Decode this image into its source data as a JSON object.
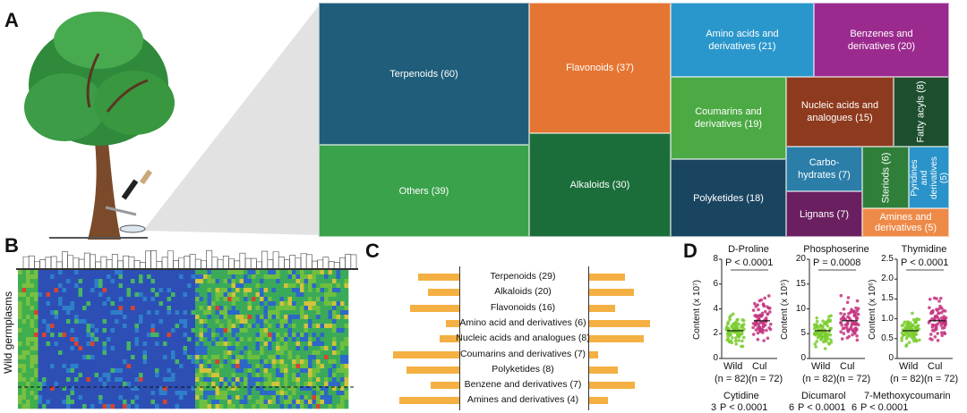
{
  "panels": {
    "a": "A",
    "b": "B",
    "c": "C",
    "d": "D"
  },
  "treemap": {
    "cells": [
      {
        "id": "terpenoids",
        "label": "Terpenoids (60)",
        "color": "#1f5d7a"
      },
      {
        "id": "others",
        "label": "Others (39)",
        "color": "#3aa24a"
      },
      {
        "id": "flavonoids",
        "label": "Flavonoids (37)",
        "color": "#e57532"
      },
      {
        "id": "alkaloids",
        "label": "Alkaloids (30)",
        "color": "#1b6e3a"
      },
      {
        "id": "amino-acids",
        "label": "Amino acids and derivatives (21)",
        "color": "#2a97cc"
      },
      {
        "id": "benzenes",
        "label": "Benzenes and derivatives (20)",
        "color": "#9b2a8e"
      },
      {
        "id": "coumarins",
        "label": "Coumarins and derivatives (19)",
        "color": "#4caa45"
      },
      {
        "id": "polyketides",
        "label": "Polyketides (18)",
        "color": "#1a4560"
      },
      {
        "id": "nucleic-acids",
        "label": "Nucleic acids and analogues (15)",
        "color": "#8e3a1e"
      },
      {
        "id": "fatty-acyls",
        "label": "Fatty acyls (8)",
        "color": "#1d4f2e"
      },
      {
        "id": "carbohydrates",
        "label": "Carbo-hydrates (7)",
        "color": "#2a7ea8"
      },
      {
        "id": "steriods",
        "label": "Steriods (6)",
        "color": "#2f7f3a"
      },
      {
        "id": "pyridines",
        "label": "Pyridines and derivatives (5)",
        "color": "#2a93c9"
      },
      {
        "id": "lignans",
        "label": "Lignans (7)",
        "color": "#6a2060"
      },
      {
        "id": "amines",
        "label": "Amines and derivatives (5)",
        "color": "#ee8a48"
      }
    ]
  },
  "heatmap": {
    "ylabel": "Wild germplasms"
  },
  "panel_c": {
    "items": [
      {
        "label": "Terpenoids (29)",
        "left": 0.55,
        "right": 0.5
      },
      {
        "label": "Alkaloids (20)",
        "left": 0.42,
        "right": 0.62
      },
      {
        "label": "Flavonoids (16)",
        "left": 0.65,
        "right": 0.36
      },
      {
        "label": "Amino acid and derivatives (6)",
        "left": 0.18,
        "right": 0.85
      },
      {
        "label": "Nucleic acids and analogues (8)",
        "left": 0.26,
        "right": 0.76
      },
      {
        "label": "Coumarins and derivatives (7)",
        "left": 0.88,
        "right": 0.12
      },
      {
        "label": "Polyketides (8)",
        "left": 0.7,
        "right": 0.4
      },
      {
        "label": "Benzene and derivatives (7)",
        "left": 0.38,
        "right": 0.64
      },
      {
        "label": "Amines and derivatives (4)",
        "left": 0.8,
        "right": 0.26
      }
    ]
  },
  "panel_d": {
    "plots": [
      {
        "title": "D-Proline",
        "p": "P < 0.0001",
        "ylabel": "Content (x 10⁷)",
        "ticks": [
          "0",
          "2",
          "4",
          "6",
          "8"
        ],
        "x1": "Wild",
        "x2": "Cul",
        "n1": "(n = 82)",
        "n2": "(n = 72)"
      },
      {
        "title": "Phosphoserine",
        "p": "P = 0.0008",
        "ylabel": "Content (x 10⁵)",
        "ticks": [
          "0",
          "5",
          "10",
          "15",
          "20"
        ],
        "x1": "Wild",
        "x2": "Cul",
        "n1": "(n = 82)",
        "n2": "(n = 72)"
      },
      {
        "title": "Thymidine",
        "p": "P < 0.0001",
        "ylabel": "Content (x 10⁶)",
        "ticks": [
          "0",
          "0.5",
          "1.0",
          "1.5",
          "2.0",
          "2.5"
        ],
        "x1": "Wild",
        "x2": "Cul",
        "n1": "(n = 82)",
        "n2": "(n = 72)"
      }
    ],
    "bottom": [
      {
        "title": "Cytidine",
        "p": "P < 0.0001",
        "tick": "3"
      },
      {
        "title": "Dicumarol",
        "p": "P < 0.0001",
        "tick": "6"
      },
      {
        "title": "7-Methoxycoumarin",
        "p": "P < 0.0001",
        "tick": "6"
      }
    ]
  }
}
